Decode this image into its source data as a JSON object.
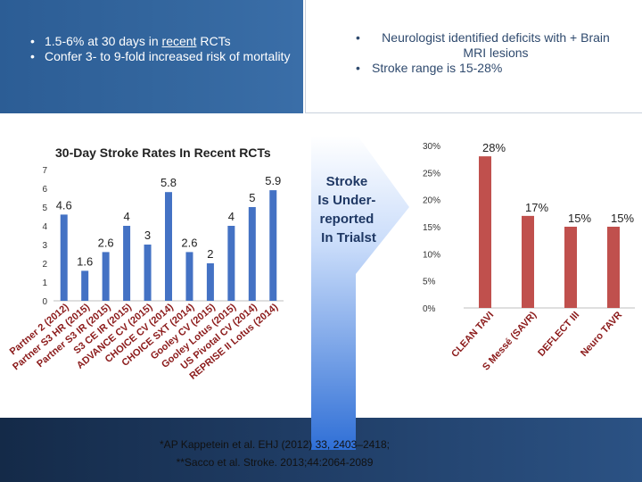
{
  "top_left": {
    "bullet_1_pre": "1.5-6% at 30 days in ",
    "bullet_1_link": "recent",
    "bullet_1_post": " RCTs",
    "bullet_2": "Confer 3- to 9-fold increased risk of mortality"
  },
  "top_right": {
    "bullet_1": "Neurologist identified deficits with + Brain MRI lesions",
    "bullet_2": "Stroke range is 15-28%"
  },
  "arrow_text": "Stroke Is Under-reported In Trialst",
  "citations": {
    "line_1": "*AP Kappetein et al. EHJ (2012) 33, 2403–2418;",
    "line_2": "**Sacco et al. Stroke. 2013;44:2064-2089"
  },
  "colors": {
    "bar_blue": "#4472c4",
    "bar_red": "#c0504d",
    "label_maroon": "#8b1a1a",
    "arrow_top": "#6f9be8",
    "arrow_bottom": "#2f6fd6"
  },
  "chart_data": [
    {
      "type": "bar",
      "title": "30-Day Stroke Rates In Recent RCTs",
      "categories": [
        "Partner 2 (2012)",
        "Partner S3 HR (2015)",
        "Partner S3 IR (2015)",
        "S3 CE IR (2015)",
        "ADVANCE CV (2015)",
        "CHOICE CV (2014)",
        "CHOICE SXT (2014)",
        "Gooley CV (2015)",
        "Gooley Lotus (2015)",
        "US Pivotal CV (2014)",
        "REPRISE II Lotus (2014)"
      ],
      "values": [
        4.6,
        1.6,
        2.6,
        4,
        3,
        5.8,
        2.6,
        2,
        4,
        5,
        5.9
      ],
      "ylim": [
        0,
        7
      ],
      "yticks": [
        0,
        1,
        2,
        3,
        4,
        5,
        6,
        7
      ],
      "xlabel": "",
      "ylabel": ""
    },
    {
      "type": "bar",
      "title": "",
      "categories": [
        "CLEAN TAVI",
        "S Messé (SAVR)",
        "DEFLECT III",
        "Neuro TAVR"
      ],
      "values": [
        28,
        17,
        15,
        15
      ],
      "data_labels": [
        "28%",
        "17%",
        "15%",
        "15%"
      ],
      "ylim": [
        0,
        30
      ],
      "yticks": [
        0,
        5,
        10,
        15,
        20,
        25,
        30
      ],
      "ytick_labels": [
        "0%",
        "5%",
        "10%",
        "15%",
        "20%",
        "25%",
        "30%"
      ],
      "xlabel": "",
      "ylabel": ""
    }
  ]
}
